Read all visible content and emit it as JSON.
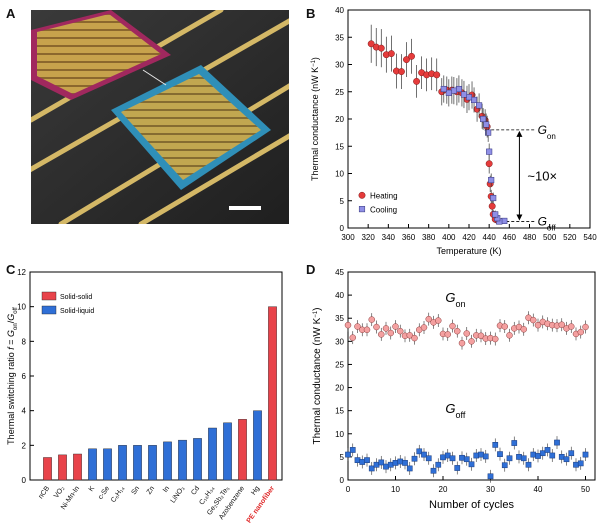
{
  "panels": {
    "a": "A",
    "b": "B",
    "c": "C",
    "d": "D"
  },
  "micrograph": {
    "description_hidden": true
  },
  "chart_data": [
    {
      "type": "scatter",
      "panel": "B",
      "xlabel": "Temperature (K)",
      "ylabel": "Thermal conductance (nW K",
      "ylabel_sup": "−1",
      "ylabel_tail": ")",
      "xlim": [
        300,
        540
      ],
      "ylim": [
        0,
        40
      ],
      "xticks": [
        300,
        320,
        340,
        360,
        380,
        400,
        420,
        440,
        460,
        480,
        500,
        520,
        540
      ],
      "yticks": [
        0,
        5,
        10,
        15,
        20,
        25,
        30,
        35,
        40
      ],
      "legend": [
        "Heating",
        "Cooling"
      ],
      "legend_placement": "bottom-left",
      "annotations": {
        "gon": "G",
        "gon_sub": "on",
        "goff": "G",
        "goff_sub": "off",
        "ratio": "~10×"
      },
      "ref_levels": {
        "on": 18,
        "off": 1.2
      },
      "series": [
        {
          "name": "Heating",
          "color": "#e53b3b",
          "points": [
            [
              323,
              33.8,
              3.5
            ],
            [
              328,
              33.2,
              3.5
            ],
            [
              333,
              33,
              3.5
            ],
            [
              338,
              31.8,
              3.3
            ],
            [
              343,
              32,
              3.3
            ],
            [
              348,
              28.8,
              3.2
            ],
            [
              353,
              28.7,
              3.2
            ],
            [
              358,
              30.9,
              3.2
            ],
            [
              363,
              31.5,
              3.2
            ],
            [
              368,
              26.9,
              3
            ],
            [
              373,
              28.5,
              3
            ],
            [
              378,
              28.1,
              3
            ],
            [
              383,
              28.3,
              3
            ],
            [
              388,
              28.1,
              3
            ],
            [
              393,
              25,
              2.5
            ],
            [
              398,
              25.3,
              2.5
            ],
            [
              403,
              25.3,
              2.5
            ],
            [
              408,
              25,
              2.5
            ],
            [
              413,
              24.8,
              2.5
            ],
            [
              418,
              23.6,
              2.5
            ],
            [
              423,
              24.4,
              2.5
            ],
            [
              428,
              21.8,
              2.3
            ],
            [
              433,
              20.5,
              2.3
            ],
            [
              436,
              19.8,
              2
            ],
            [
              438,
              18.6,
              2
            ],
            [
              440,
              11.8,
              1.8
            ],
            [
              441,
              8.1,
              1.5
            ],
            [
              442,
              5.8,
              1.2
            ],
            [
              443,
              4,
              1.2
            ],
            [
              444,
              2.5,
              0.8
            ],
            [
              446,
              1.6,
              0.7
            ],
            [
              449,
              1.3,
              0.6
            ]
          ]
        },
        {
          "name": "Cooling",
          "color": "#8f8fe6",
          "points": [
            [
              455,
              1.3,
              0.5
            ],
            [
              450,
              1.2,
              0.5
            ],
            [
              448,
              1.8,
              0.6
            ],
            [
              446,
              2.5,
              0.7
            ],
            [
              444,
              5.5,
              1
            ],
            [
              442,
              8.8,
              1.2
            ],
            [
              440,
              14,
              1.5
            ],
            [
              439,
              17.5,
              1.7
            ],
            [
              437,
              19,
              2
            ],
            [
              434,
              20,
              2
            ],
            [
              430,
              22.5,
              2.2
            ],
            [
              425,
              23.5,
              2.3
            ],
            [
              420,
              24,
              2.4
            ],
            [
              415,
              24.5,
              2.5
            ],
            [
              410,
              25.5,
              2.5
            ],
            [
              405,
              25.2,
              2.5
            ],
            [
              400,
              24.8,
              2.5
            ],
            [
              395,
              25.5,
              2.5
            ]
          ]
        }
      ]
    },
    {
      "type": "bar",
      "panel": "C",
      "ylabel": "Thermal switching ratio ",
      "ylabel_f": "f",
      "ylabel_eq": " = ",
      "ylabel_g": "G",
      "ylabel_on": "on",
      "ylabel_slash": "/",
      "ylabel_off": "off",
      "ylim": [
        0,
        12
      ],
      "yticks": [
        0,
        2,
        4,
        6,
        8,
        10,
        12
      ],
      "legend": [
        {
          "name": "Solid-solid",
          "color": "#e8434a"
        },
        {
          "name": "Solid-liquid",
          "color": "#2f6fd6"
        }
      ],
      "bars": [
        {
          "label": "nCB",
          "value": 1.3,
          "kind": "Solid-solid"
        },
        {
          "label": "VO₂",
          "value": 1.45,
          "kind": "Solid-solid"
        },
        {
          "label": "Ni-Mn-In",
          "value": 1.5,
          "kind": "Solid-solid"
        },
        {
          "label": "K",
          "value": 1.8,
          "kind": "Solid-liquid"
        },
        {
          "label": "c-Se",
          "value": 1.8,
          "kind": "Solid-liquid"
        },
        {
          "label": "C₆H₁₄",
          "value": 2.0,
          "kind": "Solid-liquid"
        },
        {
          "label": "Sn",
          "value": 2.0,
          "kind": "Solid-liquid"
        },
        {
          "label": "Zn",
          "value": 2.0,
          "kind": "Solid-liquid"
        },
        {
          "label": "In",
          "value": 2.2,
          "kind": "Solid-liquid"
        },
        {
          "label": "LiNO₃",
          "value": 2.3,
          "kind": "Solid-liquid"
        },
        {
          "label": "Cd",
          "value": 2.4,
          "kind": "Solid-liquid"
        },
        {
          "label": "C₁₆H₃₄",
          "value": 3.0,
          "kind": "Solid-liquid"
        },
        {
          "label": "Ge₂Sb₂Te₅",
          "value": 3.3,
          "kind": "Solid-liquid"
        },
        {
          "label": "Azobenzene",
          "value": 3.5,
          "kind": "Solid-solid"
        },
        {
          "label": "Hg",
          "value": 4.0,
          "kind": "Solid-liquid"
        },
        {
          "label": "PE nanofiber",
          "value": 10.0,
          "kind": "Solid-solid",
          "highlight": "#e02b2b"
        }
      ]
    },
    {
      "type": "scatter",
      "panel": "D",
      "xlabel": "Number of cycles",
      "ylabel": "Thermal conductance (nW K",
      "ylabel_sup": "−1",
      "ylabel_tail": ")",
      "xlim": [
        0,
        52
      ],
      "ylim": [
        0,
        45
      ],
      "xticks": [
        0,
        10,
        20,
        30,
        40,
        50
      ],
      "yticks": [
        0,
        5,
        10,
        15,
        20,
        25,
        30,
        35,
        40,
        45
      ],
      "annotations": {
        "gon": "G",
        "gon_sub": "on",
        "goff": "G",
        "goff_sub": "off"
      },
      "series": [
        {
          "name": "G_on",
          "color": "#f4a0a0",
          "values": [
            33.5,
            30.8,
            33.2,
            32.5,
            32.5,
            34.7,
            33.1,
            31.5,
            32.8,
            31.8,
            33.2,
            32.2,
            31.2,
            31.3,
            30.7,
            32.5,
            33,
            34.8,
            34.1,
            34.5,
            31.6,
            31.5,
            33.3,
            32.2,
            29.6,
            31.7,
            30,
            31.3,
            31.2,
            30.6,
            30.7,
            30.5,
            33.4,
            33.2,
            31.3,
            32.8,
            33.1,
            32.6,
            35.1,
            34.6,
            33.5,
            34.2,
            33.8,
            33.5,
            33.4,
            33.6,
            32.8,
            33.2,
            31.6,
            32,
            33.1
          ]
        },
        {
          "name": "G_off",
          "color": "#2f6fd6",
          "values": [
            5.5,
            6.5,
            4.3,
            3.9,
            4.3,
            2.5,
            3.3,
            3.8,
            2.9,
            3.3,
            3.7,
            4,
            3.7,
            2.5,
            4.6,
            6.2,
            5.5,
            4.7,
            2,
            3.3,
            4.9,
            5.3,
            4.7,
            2.6,
            4.8,
            4.5,
            3.4,
            5.3,
            5.5,
            5.1,
            0.8,
            7.6,
            5.6,
            3.2,
            4.7,
            8,
            5,
            4.7,
            3.3,
            5.5,
            5.2,
            5.8,
            6.5,
            5.3,
            8.1,
            5,
            4.5,
            5.8,
            3.3,
            3.6,
            5.5
          ]
        }
      ]
    }
  ]
}
